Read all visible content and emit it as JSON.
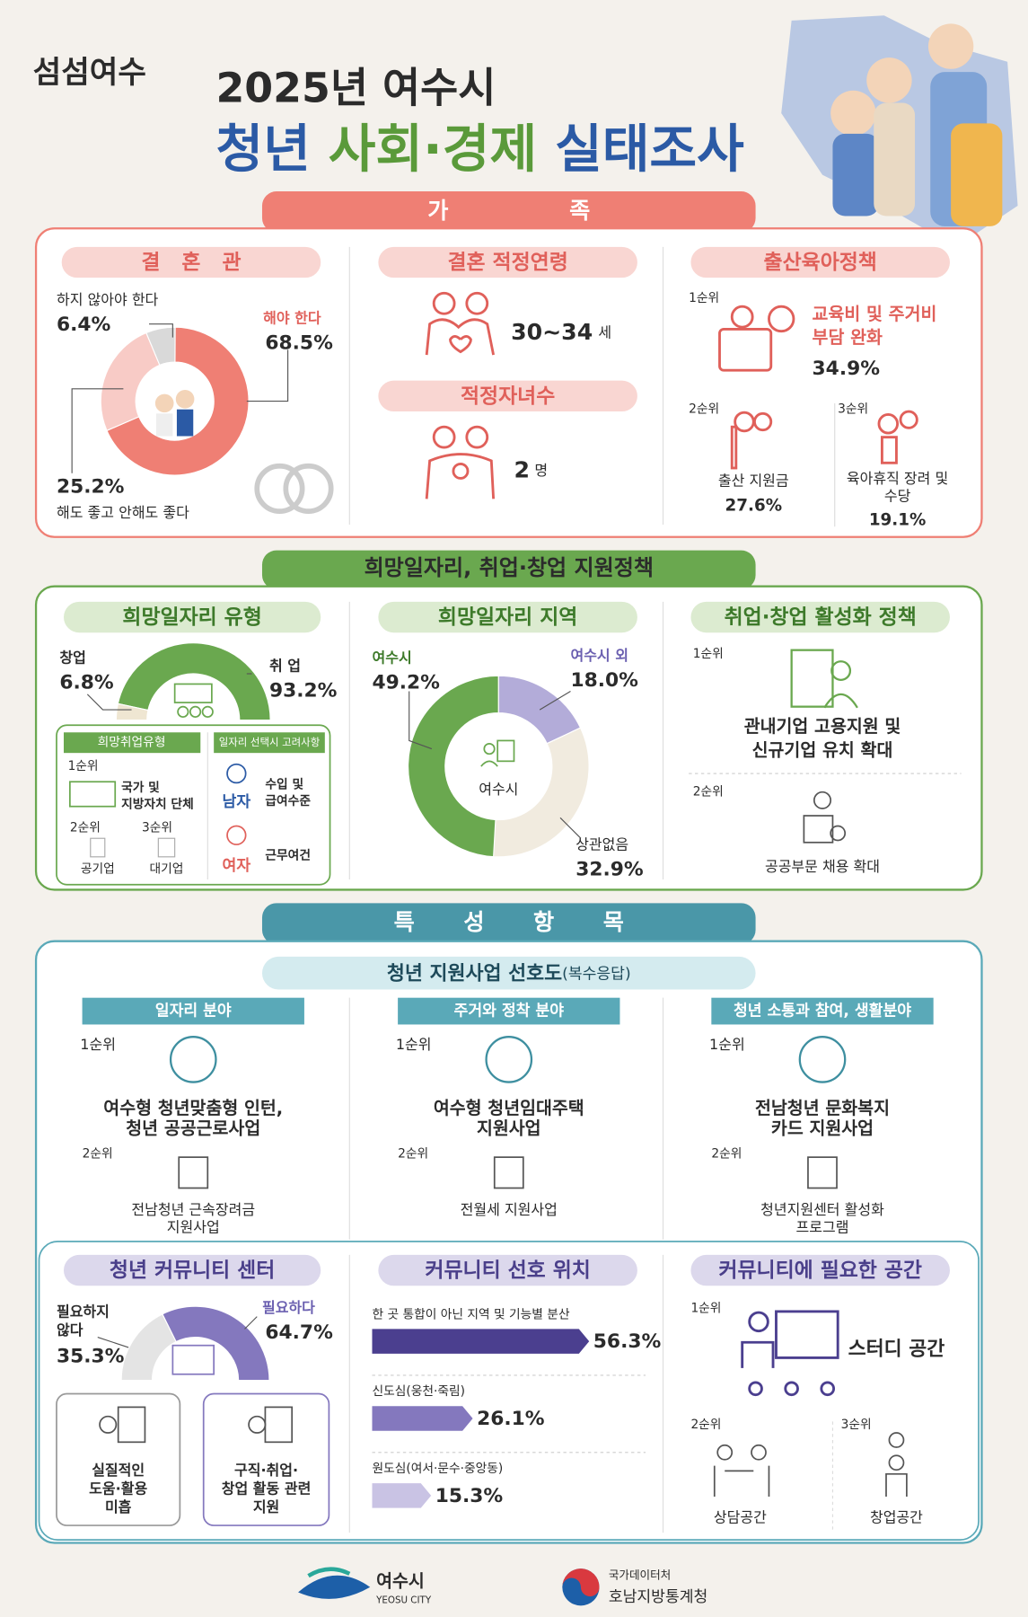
{
  "logo": "섬섬여수",
  "header": {
    "line1": "2025년 여수시",
    "line2": [
      "청년",
      "사회·경제",
      "실태조사"
    ]
  },
  "family": {
    "title": "가 족",
    "marriage_view": {
      "title": "결 혼 관",
      "slices": [
        {
          "label": [
            "해야 한다"
          ],
          "value": 68.5,
          "value_label": "68.5%",
          "color": "#ef7f74"
        },
        {
          "label": [
            "해도 좋고 안해도 좋다"
          ],
          "value": 25.2,
          "value_label": "25.2%",
          "color": "#f8cbc6"
        },
        {
          "label": [
            "하지 않아야 한다"
          ],
          "value": 6.4,
          "value_label": "6.4%",
          "color": "#d9d9d9"
        }
      ]
    },
    "marriage_age": {
      "title": "결혼 적정연령",
      "value": "30~34",
      "unit": "세"
    },
    "children": {
      "title": "적정자녀수",
      "value": "2",
      "unit": "명"
    },
    "birth_policy": {
      "title": "출산육아정책",
      "items": [
        {
          "rank": "1순위",
          "label": [
            "교육비 및 주거비",
            "부담 완화"
          ],
          "value": "34.9%"
        },
        {
          "rank": "2순위",
          "label": [
            "출산 지원금"
          ],
          "value": "27.6%"
        },
        {
          "rank": "3순위",
          "label": [
            "육아휴직 장려 및",
            "수당"
          ],
          "value": "19.1%"
        }
      ]
    }
  },
  "jobs": {
    "title": "희망일자리, 취업·창업 지원정책",
    "job_type": {
      "title": "희망일자리 유형",
      "slices": [
        {
          "label": [
            "취 업"
          ],
          "value": 93.2,
          "value_label": "93.2%",
          "color": "#6aa84f"
        },
        {
          "label": [
            "창업"
          ],
          "value": 6.8,
          "value_label": "6.8%",
          "color": "#efe6d2"
        }
      ],
      "employment_type": {
        "title": "희망취업유형",
        "items": [
          {
            "rank": "1순위",
            "label": [
              "국가 및",
              "지방자치 단체"
            ]
          },
          {
            "rank": "2순위",
            "label": [
              "공기업"
            ]
          },
          {
            "rank": "3순위",
            "label": [
              "대기업"
            ]
          }
        ]
      },
      "selection_factor": {
        "title": "일자리 선택시 고려사항",
        "items": [
          {
            "gender": "남자",
            "label": [
              "수입 및",
              "급여수준"
            ]
          },
          {
            "gender": "여자",
            "label": [
              "근무여건"
            ]
          }
        ]
      }
    },
    "job_region": {
      "title": "희망일자리 지역",
      "center": "여수시",
      "slices": [
        {
          "label": [
            "여수시"
          ],
          "value": 49.2,
          "value_label": "49.2%",
          "color": "#6aa84f"
        },
        {
          "label": [
            "여수시 외"
          ],
          "value": 18.0,
          "value_label": "18.0%",
          "color": "#b3acd9"
        },
        {
          "label": [
            "상관없음"
          ],
          "value": 32.9,
          "value_label": "32.9%",
          "color": "#f1ebdf"
        }
      ]
    },
    "policy": {
      "title": "취업·창업 활성화 정책",
      "items": [
        {
          "rank": "1순위",
          "label": [
            "관내기업 고용지원 및",
            "신규기업 유치 확대"
          ]
        },
        {
          "rank": "2순위",
          "label": [
            "공공부문 채용 확대"
          ]
        }
      ]
    }
  },
  "special": {
    "title": "특 성 항 목",
    "preference": {
      "title": "청년 지원사업 선호도",
      "note": "(복수응답)",
      "fields": [
        {
          "title": "일자리 분야",
          "items": [
            {
              "rank": "1순위",
              "label": [
                "여수형 청년맞춤형 인턴,",
                "청년 공공근로사업"
              ]
            },
            {
              "rank": "2순위",
              "label": [
                "전남청년 근속장려금",
                "지원사업"
              ]
            }
          ]
        },
        {
          "title": "주거와 정착 분야",
          "items": [
            {
              "rank": "1순위",
              "label": [
                "여수형 청년임대주택",
                "지원사업"
              ]
            },
            {
              "rank": "2순위",
              "label": [
                "전월세 지원사업"
              ]
            }
          ]
        },
        {
          "title": "청년 소통과 참여, 생활분야",
          "items": [
            {
              "rank": "1순위",
              "label": [
                "전남청년 문화복지",
                "카드 지원사업"
              ]
            },
            {
              "rank": "2순위",
              "label": [
                "청년지원센터 활성화",
                "프로그램"
              ]
            }
          ]
        }
      ]
    },
    "community_center": {
      "title": "청년 커뮤니티 센터",
      "slices": [
        {
          "label": [
            "필요하다"
          ],
          "value": 64.7,
          "value_label": "64.7%",
          "color": "#8478be",
          "reason": [
            "구직·취업·",
            "창업 활동 관련",
            "지원"
          ]
        },
        {
          "label": [
            "필요하지",
            "않다"
          ],
          "value": 35.3,
          "value_label": "35.3%",
          "color": "#e4e4e4",
          "reason": [
            "실질적인",
            "도움·활용",
            "미흡"
          ]
        }
      ]
    },
    "location": {
      "title": "커뮤니티 선호 위치",
      "bars": [
        {
          "label": "한 곳 통합이 아닌 지역 및 기능별 분산",
          "value": 56.3,
          "value_label": "56.3%",
          "color": "#4b3f8f"
        },
        {
          "label": "신도심(웅천·죽림)",
          "value": 26.1,
          "value_label": "26.1%",
          "color": "#8478be"
        },
        {
          "label": "원도심(여서·문수·중앙동)",
          "value": 15.3,
          "value_label": "15.3%",
          "color": "#c9c3e4"
        }
      ]
    },
    "space": {
      "title": "커뮤니티에 필요한 공간",
      "items": [
        {
          "rank": "1순위",
          "label": "스터디 공간"
        },
        {
          "rank": "2순위",
          "label": "상담공간"
        },
        {
          "rank": "3순위",
          "label": "창업공간"
        }
      ]
    }
  },
  "footer": {
    "city": "여수시",
    "city_en": "YEOSU CITY",
    "agency": [
      "국가데이터처",
      "호남지방통계청"
    ]
  }
}
